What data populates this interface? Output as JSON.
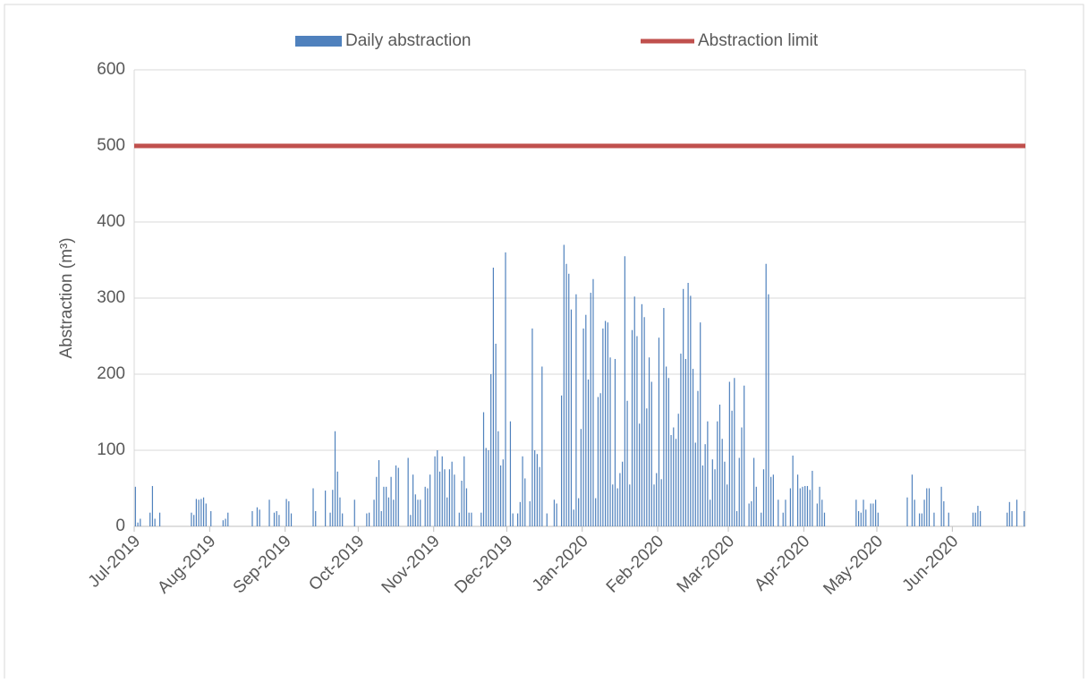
{
  "chart_data": {
    "type": "bar",
    "ylabel": "Abstraction (m³)",
    "xlim": [
      0,
      366
    ],
    "xticks": [
      {
        "value": 0,
        "label": "Jul-2019"
      },
      {
        "value": 31,
        "label": "Aug-2019"
      },
      {
        "value": 62,
        "label": "Sep-2019"
      },
      {
        "value": 92,
        "label": "Oct-2019"
      },
      {
        "value": 123,
        "label": "Nov-2019"
      },
      {
        "value": 153,
        "label": "Dec-2019"
      },
      {
        "value": 184,
        "label": "Jan-2020"
      },
      {
        "value": 215,
        "label": "Feb-2020"
      },
      {
        "value": 244,
        "label": "Mar-2020"
      },
      {
        "value": 275,
        "label": "Apr-2020"
      },
      {
        "value": 305,
        "label": "May-2020"
      },
      {
        "value": 336,
        "label": "Jun-2020"
      }
    ],
    "ylim": [
      0,
      600
    ],
    "yticks": [
      0,
      100,
      200,
      300,
      400,
      500,
      600
    ],
    "grid": true,
    "legend": "top",
    "series": [
      {
        "name": "Daily abstraction",
        "color": "#4f81bd",
        "kind": "bar",
        "x": [
          0,
          1,
          2,
          6,
          7,
          8,
          10,
          23,
          24,
          25,
          26,
          27,
          28,
          29,
          31,
          36,
          37,
          38,
          48,
          50,
          51,
          55,
          57,
          58,
          59,
          62,
          63,
          64,
          73,
          74,
          78,
          80,
          81,
          82,
          83,
          84,
          85,
          90,
          95,
          96,
          98,
          99,
          100,
          101,
          102,
          103,
          104,
          105,
          106,
          107,
          108,
          112,
          113,
          114,
          115,
          116,
          117,
          119,
          120,
          121,
          123,
          124,
          125,
          126,
          127,
          128,
          129,
          130,
          131,
          133,
          134,
          135,
          136,
          137,
          138,
          142,
          143,
          144,
          145,
          146,
          147,
          148,
          149,
          150,
          151,
          152,
          154,
          155,
          157,
          158,
          159,
          160,
          162,
          163,
          164,
          165,
          166,
          167,
          169,
          172,
          173,
          175,
          176,
          177,
          178,
          179,
          180,
          181,
          182,
          183,
          184,
          185,
          186,
          187,
          188,
          189,
          190,
          191,
          192,
          193,
          194,
          195,
          196,
          197,
          198,
          199,
          200,
          201,
          202,
          203,
          204,
          205,
          206,
          207,
          208,
          209,
          210,
          211,
          212,
          213,
          214,
          215,
          216,
          217,
          218,
          219,
          220,
          221,
          222,
          223,
          224,
          225,
          226,
          227,
          228,
          229,
          230,
          231,
          232,
          233,
          234,
          235,
          236,
          237,
          238,
          239,
          240,
          241,
          242,
          243,
          244,
          245,
          246,
          247,
          248,
          249,
          250,
          252,
          253,
          254,
          255,
          257,
          258,
          259,
          260,
          261,
          262,
          264,
          266,
          267,
          269,
          270,
          272,
          273,
          274,
          275,
          276,
          277,
          278,
          280,
          281,
          282,
          283,
          296,
          297,
          298,
          299,
          300,
          302,
          303,
          304,
          305,
          317,
          319,
          320,
          322,
          323,
          324,
          325,
          326,
          328,
          331,
          332,
          334,
          344,
          345,
          346,
          347,
          358,
          359,
          360,
          362,
          365
        ],
        "values": [
          52,
          5,
          10,
          18,
          53,
          10,
          18,
          18,
          15,
          36,
          35,
          36,
          38,
          30,
          20,
          8,
          10,
          18,
          20,
          25,
          22,
          35,
          18,
          20,
          15,
          36,
          33,
          17,
          50,
          20,
          47,
          18,
          48,
          125,
          72,
          38,
          17,
          35,
          17,
          18,
          35,
          65,
          87,
          20,
          52,
          52,
          38,
          65,
          35,
          80,
          77,
          90,
          15,
          68,
          42,
          35,
          35,
          52,
          50,
          68,
          92,
          100,
          72,
          92,
          75,
          38,
          75,
          85,
          68,
          18,
          60,
          92,
          50,
          18,
          18,
          18,
          150,
          103,
          100,
          200,
          340,
          240,
          125,
          80,
          88,
          360,
          138,
          17,
          17,
          32,
          92,
          63,
          33,
          260,
          100,
          95,
          78,
          210,
          17,
          35,
          30,
          172,
          370,
          345,
          332,
          285,
          22,
          305,
          37,
          128,
          260,
          278,
          193,
          307,
          325,
          37,
          170,
          175,
          260,
          270,
          268,
          222,
          55,
          220,
          50,
          70,
          85,
          355,
          165,
          55,
          258,
          302,
          250,
          135,
          292,
          275,
          155,
          222,
          190,
          55,
          70,
          248,
          62,
          287,
          210,
          195,
          120,
          130,
          115,
          148,
          227,
          312,
          220,
          320,
          303,
          207,
          110,
          178,
          268,
          80,
          108,
          138,
          35,
          88,
          75,
          138,
          160,
          115,
          85,
          55,
          190,
          152,
          195,
          20,
          90,
          130,
          185,
          30,
          33,
          90,
          52,
          18,
          75,
          345,
          305,
          65,
          68,
          35,
          18,
          35,
          50,
          93,
          68,
          50,
          52,
          53,
          53,
          48,
          73,
          30,
          52,
          35,
          18,
          35,
          20,
          18,
          35,
          22,
          30,
          30,
          35,
          18,
          38,
          68,
          35,
          17,
          17,
          35,
          50,
          50,
          18,
          52,
          33,
          18,
          18,
          18,
          27,
          20,
          18,
          32,
          20,
          35,
          20
        ]
      },
      {
        "name": "Abstraction limit",
        "color": "#c0504d",
        "kind": "line",
        "x": [
          0,
          366
        ],
        "values": [
          500,
          500
        ]
      }
    ]
  }
}
